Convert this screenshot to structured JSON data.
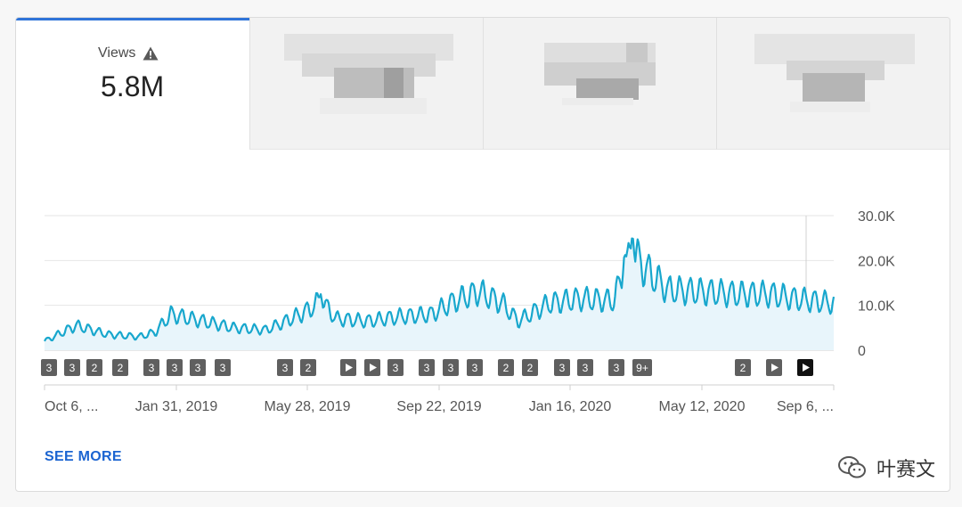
{
  "tabs": [
    {
      "label": "Views",
      "value": "5.8M",
      "icon": "warning-triangle-icon",
      "active": true
    },
    {
      "label": "",
      "value": "",
      "blurred": true
    },
    {
      "label": "",
      "value": "",
      "blurred": true
    },
    {
      "label": "",
      "value": "",
      "blurred": true
    }
  ],
  "colors": {
    "accent": "#2f74d8",
    "line": "#18a7cd",
    "fill": "#e8f5fb",
    "link": "#1b64d1"
  },
  "chart_data": {
    "type": "area",
    "x_ticks": [
      "Oct 6, ...",
      "Jan 31, 2019",
      "May 28, 2019",
      "Sep 22, 2019",
      "Jan 16, 2020",
      "May 12, 2020",
      "Sep 6, ..."
    ],
    "y_ticks": [
      "30.0K",
      "20.0K",
      "10.0K",
      "0"
    ],
    "ylim": [
      0,
      30000
    ],
    "grid": true,
    "anchors": [
      [
        0,
        2000
      ],
      [
        0.04,
        5500
      ],
      [
        0.08,
        3500
      ],
      [
        0.12,
        3000
      ],
      [
        0.14,
        4000
      ],
      [
        0.16,
        8000
      ],
      [
        0.2,
        6500
      ],
      [
        0.24,
        5000
      ],
      [
        0.28,
        4500
      ],
      [
        0.3,
        6000
      ],
      [
        0.33,
        8500
      ],
      [
        0.35,
        11000
      ],
      [
        0.37,
        7000
      ],
      [
        0.41,
        6500
      ],
      [
        0.45,
        7500
      ],
      [
        0.49,
        8000
      ],
      [
        0.52,
        11000
      ],
      [
        0.55,
        13000
      ],
      [
        0.58,
        10500
      ],
      [
        0.6,
        6500
      ],
      [
        0.64,
        10500
      ],
      [
        0.68,
        11500
      ],
      [
        0.72,
        11000
      ],
      [
        0.745,
        21500
      ],
      [
        0.765,
        17500
      ],
      [
        0.79,
        13500
      ],
      [
        0.84,
        13000
      ],
      [
        0.88,
        12500
      ],
      [
        0.92,
        12500
      ],
      [
        0.95,
        11500
      ],
      [
        1.0,
        10500
      ]
    ],
    "spikes": [
      [
        0.35,
        12500
      ],
      [
        0.745,
        26500
      ],
      [
        0.735,
        22000
      ]
    ],
    "markers": [
      {
        "label": "3",
        "kind": "number"
      },
      {
        "label": "3",
        "kind": "number"
      },
      {
        "label": "2",
        "kind": "number"
      },
      {
        "label": "2",
        "kind": "number"
      },
      {
        "label": "3",
        "kind": "number"
      },
      {
        "label": "3",
        "kind": "number"
      },
      {
        "label": "3",
        "kind": "number"
      },
      {
        "label": "3",
        "kind": "number"
      },
      {
        "label": "3",
        "kind": "number"
      },
      {
        "label": "2",
        "kind": "number"
      },
      {
        "label": "",
        "kind": "play"
      },
      {
        "label": "",
        "kind": "play"
      },
      {
        "label": "3",
        "kind": "number"
      },
      {
        "label": "3",
        "kind": "number"
      },
      {
        "label": "3",
        "kind": "number"
      },
      {
        "label": "3",
        "kind": "number"
      },
      {
        "label": "2",
        "kind": "number"
      },
      {
        "label": "2",
        "kind": "number"
      },
      {
        "label": "3",
        "kind": "number"
      },
      {
        "label": "3",
        "kind": "number"
      },
      {
        "label": "3",
        "kind": "number"
      },
      {
        "label": "9+",
        "kind": "number"
      },
      {
        "label": "2",
        "kind": "number"
      },
      {
        "label": "",
        "kind": "play"
      },
      {
        "label": "",
        "kind": "play-active"
      }
    ]
  },
  "see_more": "SEE MORE",
  "watermark": "叶赛文"
}
